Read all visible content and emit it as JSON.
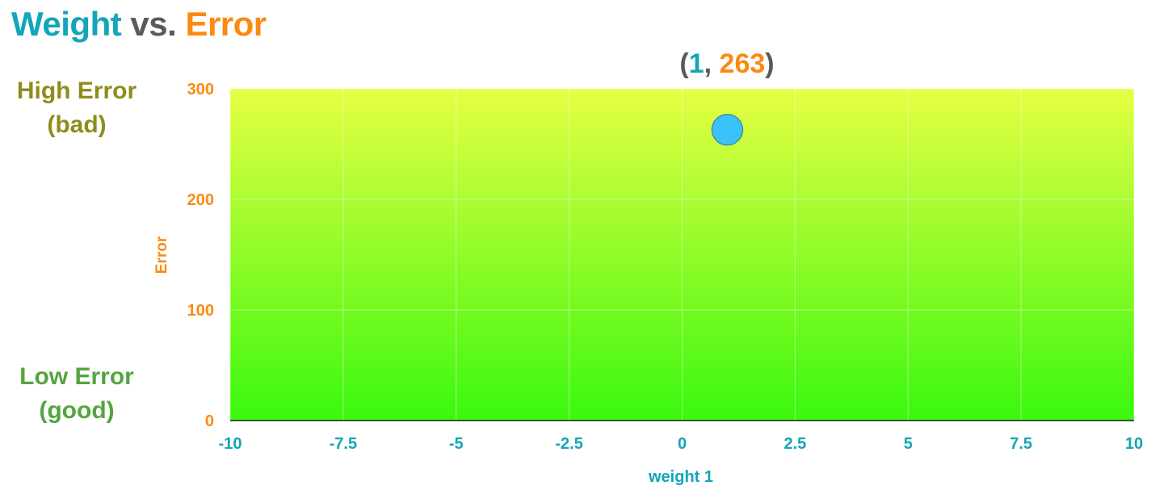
{
  "chart_data": {
    "type": "scatter",
    "title": {
      "part1": "Weight",
      "part2": "vs.",
      "part3": "Error"
    },
    "readout": {
      "open": "(",
      "x": "1",
      "sep": ", ",
      "y": "263",
      "close": ")"
    },
    "side_labels": {
      "high_line1": "High Error",
      "high_line2": "(bad)",
      "low_line1": "Low Error",
      "low_line2": "(good)"
    },
    "xlabel": "weight 1",
    "ylabel": "Error",
    "xlim": [
      -10,
      10
    ],
    "ylim": [
      0,
      300
    ],
    "x_ticks": [
      -10,
      -7.5,
      -5,
      -2.5,
      0,
      2.5,
      5,
      7.5,
      10
    ],
    "y_ticks": [
      0,
      100,
      200,
      300
    ],
    "grid": true,
    "background_gradient": {
      "top": "#e6ff44",
      "bottom": "#3af80e"
    },
    "points": [
      {
        "x": 1,
        "y": 263,
        "color": "#39c3f8"
      }
    ],
    "colors": {
      "weight": "#13a5b8",
      "error": "#fb8a11",
      "neutral": "#5a5a5a",
      "high_error": "#8f8c1a",
      "low_error": "#55a43e"
    }
  }
}
